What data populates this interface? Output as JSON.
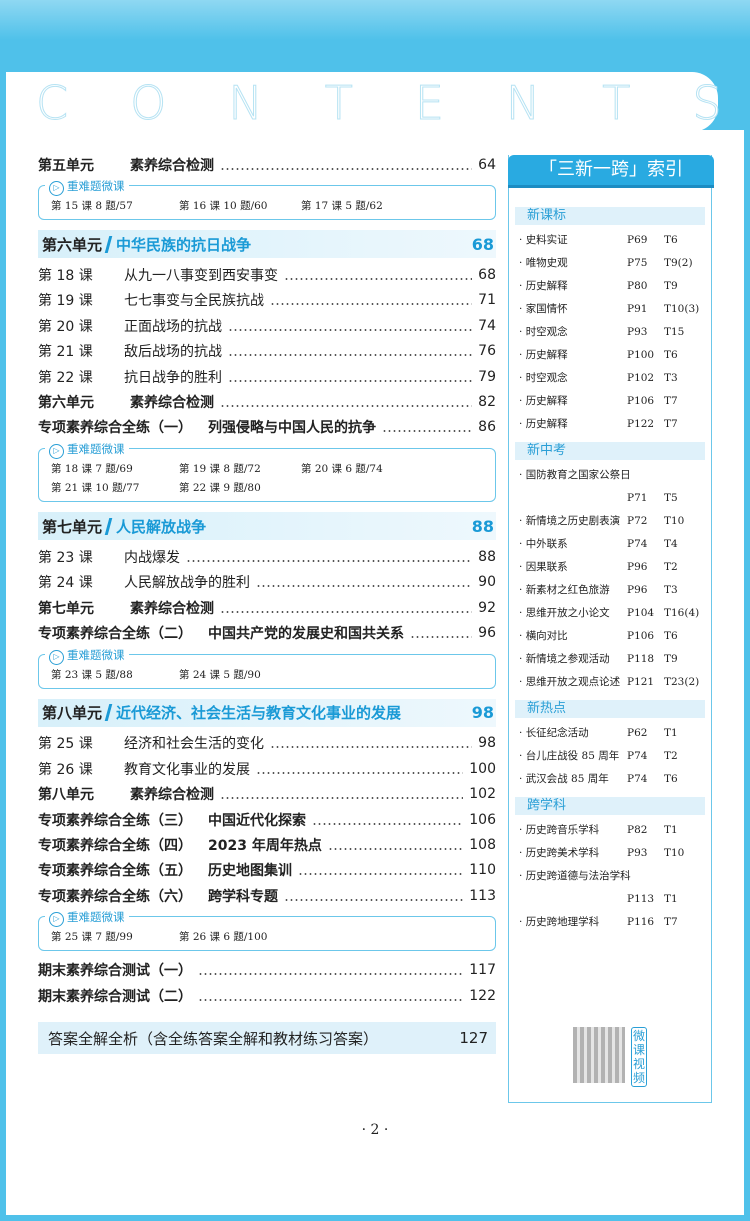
{
  "header": {
    "title": "CONTENTS"
  },
  "sections": [
    {
      "entries": [
        {
          "label": "第五单元",
          "title": "素养综合检测",
          "page": 64,
          "bold": true
        }
      ],
      "microlessons": {
        "label": "重难题微课",
        "items": [
          "第 15 课 8 题/57",
          "第 16 课 10 题/60",
          "第 17 课 5 题/62"
        ]
      }
    },
    {
      "unit": {
        "label": "第六单元",
        "title": "中华民族的抗日战争",
        "page": 68
      },
      "entries": [
        {
          "label": "第 18 课",
          "title": "从九一八事变到西安事变",
          "page": 68
        },
        {
          "label": "第 19 课",
          "title": "七七事变与全民族抗战",
          "page": 71
        },
        {
          "label": "第 20 课",
          "title": "正面战场的抗战",
          "page": 74
        },
        {
          "label": "第 21 课",
          "title": "敌后战场的抗战",
          "page": 76
        },
        {
          "label": "第 22 课",
          "title": "抗日战争的胜利",
          "page": 79
        },
        {
          "label": "第六单元",
          "title": "素养综合检测",
          "page": 82,
          "bold": true
        },
        {
          "label": "专项素养综合全练（一）",
          "title": "列强侵略与中国人民的抗争",
          "page": 86,
          "bold": true
        }
      ],
      "microlessons": {
        "label": "重难题微课",
        "items": [
          "第 18 课 7 题/69",
          "第 19 课 8 题/72",
          "第 20 课 6 题/74",
          "第 21 课 10 题/77",
          "第 22 课 9 题/80"
        ]
      }
    },
    {
      "unit": {
        "label": "第七单元",
        "title": "人民解放战争",
        "page": 88
      },
      "entries": [
        {
          "label": "第 23 课",
          "title": "内战爆发",
          "page": 88
        },
        {
          "label": "第 24 课",
          "title": "人民解放战争的胜利",
          "page": 90
        },
        {
          "label": "第七单元",
          "title": "素养综合检测",
          "page": 92,
          "bold": true
        },
        {
          "label": "专项素养综合全练（二）",
          "title": "中国共产党的发展史和国共关系",
          "page": 96,
          "bold": true
        }
      ],
      "microlessons": {
        "label": "重难题微课",
        "items": [
          "第 23 课 5 题/88",
          "第 24 课 5 题/90"
        ]
      }
    },
    {
      "unit": {
        "label": "第八单元",
        "title": "近代经济、社会生活与教育文化事业的发展",
        "page": 98
      },
      "entries": [
        {
          "label": "第 25 课",
          "title": "经济和社会生活的变化",
          "page": 98
        },
        {
          "label": "第 26 课",
          "title": "教育文化事业的发展",
          "page": 100
        },
        {
          "label": "第八单元",
          "title": "素养综合检测",
          "page": 102,
          "bold": true
        },
        {
          "label": "专项素养综合全练（三）",
          "title": "中国近代化探索",
          "page": 106,
          "bold": true
        },
        {
          "label": "专项素养综合全练（四）",
          "title": "2023 年周年热点",
          "page": 108,
          "bold": true
        },
        {
          "label": "专项素养综合全练（五）",
          "title": "历史地图集训",
          "page": 110,
          "bold": true
        },
        {
          "label": "专项素养综合全练（六）",
          "title": "跨学科专题",
          "page": 113,
          "bold": true
        }
      ],
      "microlessons": {
        "label": "重难题微课",
        "items": [
          "第 25 课 7 题/99",
          "第 26 课 6 题/100"
        ]
      }
    },
    {
      "entries": [
        {
          "label": "期末素养综合测试（一）",
          "page": 117,
          "bold": true
        },
        {
          "label": "期末素养综合测试（二）",
          "page": 122,
          "bold": true
        }
      ]
    },
    {
      "answer": {
        "title": "答案全解全析（含全练答案全解和教材练习答案）",
        "page": 127
      }
    }
  ],
  "index": {
    "title": "「三新一跨」索引",
    "groups": [
      {
        "name": "新课标",
        "items": [
          {
            "text": "史料实证",
            "page": "P69",
            "task": "T6"
          },
          {
            "text": "唯物史观",
            "page": "P75",
            "task": "T9(2)"
          },
          {
            "text": "历史解释",
            "page": "P80",
            "task": "T9"
          },
          {
            "text": "家国情怀",
            "page": "P91",
            "task": "T10(3)"
          },
          {
            "text": "时空观念",
            "page": "P93",
            "task": "T15"
          },
          {
            "text": "历史解释",
            "page": "P100",
            "task": "T6"
          },
          {
            "text": "时空观念",
            "page": "P102",
            "task": "T3"
          },
          {
            "text": "历史解释",
            "page": "P106",
            "task": "T7"
          },
          {
            "text": "历史解释",
            "page": "P122",
            "task": "T7"
          }
        ]
      },
      {
        "name": "新中考",
        "items": [
          {
            "text": "国防教育之国家公祭日",
            "page": "P71",
            "task": "T5"
          },
          {
            "text": "新情境之历史剧表演",
            "page": "P72",
            "task": "T10"
          },
          {
            "text": "中外联系",
            "page": "P74",
            "task": "T4"
          },
          {
            "text": "因果联系",
            "page": "P96",
            "task": "T2"
          },
          {
            "text": "新素材之红色旅游",
            "page": "P96",
            "task": "T3"
          },
          {
            "text": "思维开放之小论文",
            "page": "P104",
            "task": "T16(4)"
          },
          {
            "text": "横向对比",
            "page": "P106",
            "task": "T6"
          },
          {
            "text": "新情境之参观活动",
            "page": "P118",
            "task": "T9"
          },
          {
            "text": "思维开放之观点论述",
            "page": "P121",
            "task": "T23(2)"
          }
        ]
      },
      {
        "name": "新热点",
        "items": [
          {
            "text": "长征纪念活动",
            "page": "P62",
            "task": "T1"
          },
          {
            "text": "台儿庄战役 85 周年",
            "page": "P74",
            "task": "T2"
          },
          {
            "text": "武汉会战 85 周年",
            "page": "P74",
            "task": "T6"
          }
        ]
      },
      {
        "name": "跨学科",
        "items": [
          {
            "text": "历史跨音乐学科",
            "page": "P82",
            "task": "T1"
          },
          {
            "text": "历史跨美术学科",
            "page": "P93",
            "task": "T10"
          },
          {
            "text": "历史跨道德与法治学科",
            "page": "P113",
            "task": "T1"
          },
          {
            "text": "历史跨地理学科",
            "page": "P116",
            "task": "T7"
          }
        ]
      }
    ],
    "qr_label": "微课视频"
  },
  "footer": {
    "page_number": "· 2 ·"
  }
}
